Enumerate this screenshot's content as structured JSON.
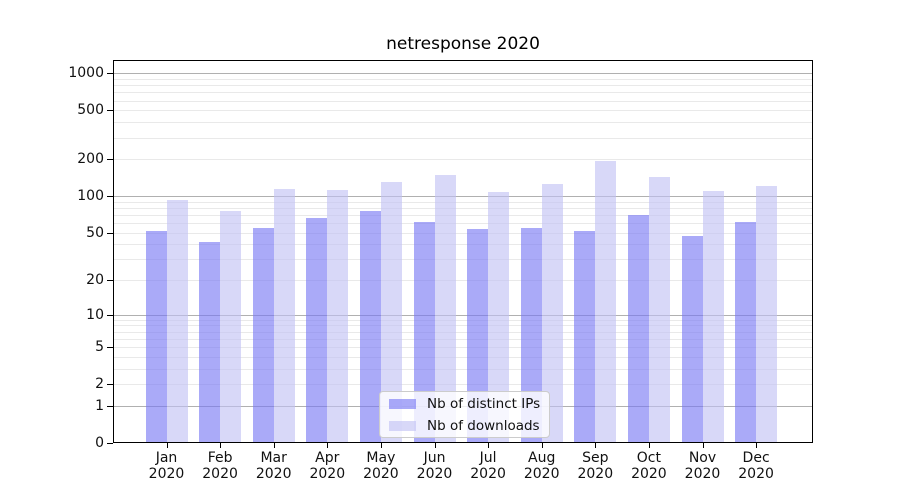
{
  "chart_data": {
    "type": "bar",
    "title": "netresponse 2020",
    "categories": [
      "Jan 2020",
      "Feb 2020",
      "Mar 2020",
      "Apr 2020",
      "May 2020",
      "Jun 2020",
      "Jul 2020",
      "Aug 2020",
      "Sep 2020",
      "Oct 2020",
      "Nov 2020",
      "Dec 2020"
    ],
    "series": [
      {
        "name": "Nb of distinct IPs",
        "values": [
          52,
          42,
          55,
          66,
          75,
          61,
          54,
          55,
          52,
          70,
          47,
          61
        ]
      },
      {
        "name": "Nb of downloads",
        "values": [
          93,
          76,
          114,
          111,
          130,
          149,
          108,
          126,
          193,
          142,
          109,
          120
        ]
      }
    ],
    "xlabel": "",
    "ylabel": "",
    "yscale": "log1p",
    "yticks": [
      0,
      1,
      2,
      5,
      10,
      20,
      50,
      100,
      200,
      500,
      1000
    ],
    "major_gridlines": [
      1,
      10,
      100,
      1000
    ],
    "minor_gridlines": [
      2,
      3,
      4,
      5,
      6,
      7,
      8,
      9,
      20,
      30,
      40,
      50,
      60,
      70,
      80,
      90,
      200,
      300,
      400,
      500,
      600,
      700,
      800,
      900
    ],
    "ylim_top_value": 1280,
    "legend_position": "lower center",
    "grid": true,
    "colors": {
      "ips": "rgba(118,118,244,0.62)",
      "downloads": "rgba(192,192,244,0.62)",
      "major_grid": "#b0b0b0",
      "minor_grid": "#e9e9e9",
      "spine": "#000000",
      "text": "#111111"
    }
  }
}
